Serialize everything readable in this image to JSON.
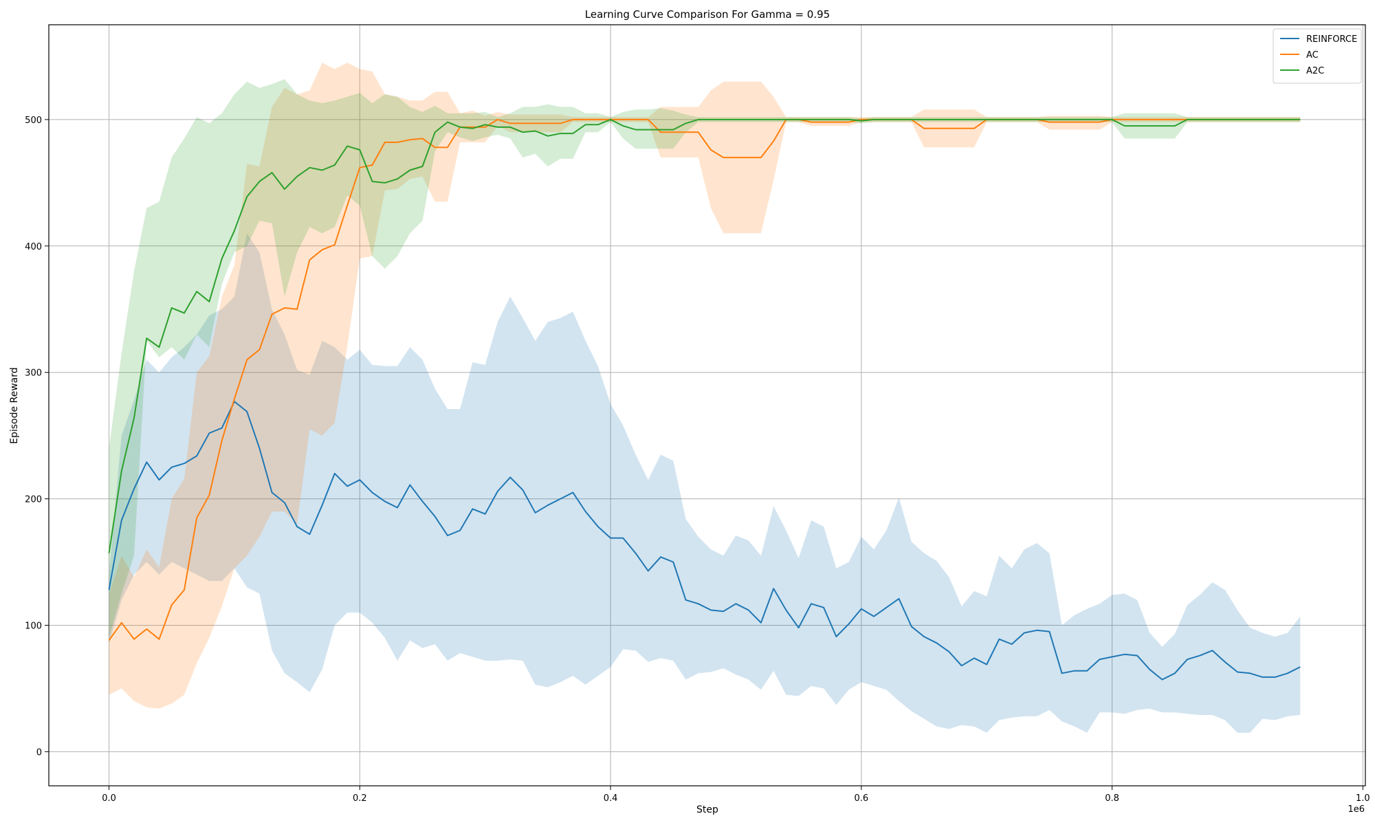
{
  "chart_data": {
    "type": "line",
    "title": "Learning Curve Comparison For Gamma = 0.95",
    "xlabel": "Step",
    "ylabel": "Episode Reward",
    "x_scale_label": "1e6",
    "xlim": [
      -0.048,
      1.002
    ],
    "ylim": [
      -27,
      575
    ],
    "x_ticks": [
      0.0,
      0.2,
      0.4,
      0.6,
      0.8,
      1.0
    ],
    "x_tick_labels": [
      "0.0",
      "0.2",
      "0.4",
      "0.6",
      "0.8",
      "1.0"
    ],
    "y_ticks": [
      0,
      100,
      200,
      300,
      400,
      500
    ],
    "y_tick_labels": [
      "0",
      "100",
      "200",
      "300",
      "400",
      "500"
    ],
    "grid": true,
    "legend_position": "top-right",
    "x_start": 0.0,
    "x_step": 0.01,
    "series": [
      {
        "name": "REINFORCE",
        "color": "#1f77b4",
        "band_color": "#1f77b4",
        "band_opacity": 0.2,
        "mean": [
          128,
          183,
          208,
          229,
          215,
          225,
          228,
          234,
          252,
          256,
          277,
          269,
          240,
          205,
          197,
          178,
          172,
          195,
          220,
          210,
          215,
          205,
          198,
          193,
          211,
          198,
          186,
          171,
          175,
          192,
          188,
          206,
          217,
          207,
          189,
          195,
          200,
          205,
          190,
          178,
          169,
          169,
          157,
          143,
          154,
          150,
          120,
          117,
          112,
          111,
          117,
          112,
          102,
          129,
          112,
          98,
          117,
          114,
          91,
          101,
          113,
          107,
          114,
          121,
          99,
          91,
          86,
          79,
          68,
          74,
          69,
          89,
          85,
          94,
          96,
          95,
          62,
          64,
          64,
          73,
          75,
          77,
          76,
          65,
          57,
          62,
          73,
          76,
          80,
          71,
          63,
          62,
          59,
          59,
          62,
          67
        ],
        "upper": [
          140,
          250,
          278,
          310,
          300,
          312,
          320,
          330,
          345,
          350,
          360,
          410,
          395,
          350,
          330,
          302,
          298,
          325,
          320,
          310,
          318,
          306,
          305,
          305,
          320,
          310,
          287,
          271,
          271,
          308,
          306,
          340,
          360,
          343,
          325,
          340,
          343,
          348,
          325,
          305,
          275,
          258,
          235,
          215,
          235,
          230,
          184,
          170,
          160,
          155,
          171,
          167,
          155,
          194,
          175,
          153,
          183,
          178,
          145,
          150,
          170,
          160,
          175,
          201,
          166,
          157,
          151,
          138,
          115,
          127,
          123,
          155,
          145,
          160,
          165,
          157,
          100,
          108,
          113,
          117,
          124,
          125,
          120,
          94,
          83,
          93,
          116,
          124,
          134,
          128,
          112,
          98,
          94,
          91,
          94,
          107
        ],
        "lower": [
          85,
          120,
          140,
          150,
          140,
          150,
          145,
          140,
          135,
          135,
          145,
          130,
          125,
          80,
          62,
          55,
          47,
          65,
          100,
          110,
          110,
          102,
          90,
          72,
          88,
          82,
          85,
          72,
          78,
          75,
          72,
          72,
          73,
          72,
          53,
          51,
          55,
          60,
          53,
          60,
          67,
          81,
          80,
          71,
          74,
          72,
          57,
          62,
          63,
          66,
          61,
          57,
          49,
          64,
          45,
          44,
          52,
          50,
          37,
          49,
          55,
          52,
          49,
          40,
          32,
          26,
          20,
          18,
          21,
          20,
          15,
          25,
          27,
          28,
          28,
          33,
          24,
          20,
          15,
          31,
          31,
          30,
          33,
          34,
          31,
          31,
          30,
          29,
          29,
          25,
          15,
          15,
          26,
          25,
          28,
          29
        ]
      },
      {
        "name": "AC",
        "color": "#ff7f0e",
        "band_color": "#ff7f0e",
        "band_opacity": 0.2,
        "mean": [
          88,
          102,
          89,
          97,
          89,
          116,
          128,
          185,
          203,
          246,
          279,
          310,
          318,
          346,
          351,
          350,
          389,
          397,
          401,
          432,
          462,
          464,
          482,
          482,
          484,
          485,
          478,
          478,
          494,
          494,
          494,
          500,
          497,
          497,
          497,
          497,
          497,
          500,
          500,
          500,
          500,
          500,
          500,
          500,
          490,
          490,
          490,
          490,
          476,
          470,
          470,
          470,
          470,
          483,
          500,
          500,
          498,
          498,
          498,
          498,
          500,
          500,
          500,
          500,
          500,
          493,
          493,
          493,
          493,
          493,
          500,
          500,
          500,
          500,
          500,
          498,
          498,
          498,
          498,
          498,
          500,
          500,
          500,
          500,
          500,
          500,
          500,
          500,
          500,
          500,
          500,
          500,
          500,
          500,
          500,
          500
        ],
        "upper": [
          125,
          155,
          138,
          160,
          146,
          200,
          216,
          300,
          313,
          360,
          385,
          465,
          463,
          510,
          525,
          520,
          523,
          545,
          540,
          545,
          540,
          538,
          520,
          518,
          515,
          515,
          522,
          522,
          505,
          507,
          503,
          506,
          504,
          504,
          504,
          504,
          504,
          502,
          502,
          502,
          502,
          502,
          502,
          502,
          510,
          510,
          510,
          510,
          523,
          530,
          530,
          530,
          530,
          518,
          502,
          502,
          502,
          502,
          502,
          502,
          502,
          502,
          502,
          502,
          502,
          508,
          508,
          508,
          508,
          508,
          502,
          502,
          502,
          502,
          502,
          503,
          503,
          503,
          503,
          503,
          502,
          502,
          502,
          502,
          502,
          502,
          502,
          502,
          502,
          502,
          502,
          502,
          502,
          502,
          502,
          502
        ],
        "lower": [
          45,
          50,
          40,
          35,
          34,
          38,
          45,
          70,
          90,
          115,
          145,
          155,
          170,
          190,
          190,
          180,
          255,
          250,
          260,
          320,
          390,
          392,
          444,
          445,
          453,
          455,
          435,
          435,
          482,
          482,
          482,
          495,
          490,
          490,
          490,
          490,
          490,
          498,
          498,
          498,
          498,
          498,
          498,
          498,
          470,
          470,
          470,
          470,
          430,
          410,
          410,
          410,
          410,
          452,
          498,
          498,
          495,
          495,
          495,
          495,
          498,
          498,
          498,
          498,
          498,
          478,
          478,
          478,
          478,
          478,
          498,
          498,
          498,
          498,
          498,
          492,
          492,
          492,
          492,
          492,
          498,
          498,
          498,
          498,
          498,
          498,
          498,
          498,
          498,
          498,
          498,
          498,
          498,
          498,
          498,
          498
        ]
      },
      {
        "name": "A2C",
        "color": "#2ca02c",
        "band_color": "#2ca02c",
        "band_opacity": 0.2,
        "mean": [
          157,
          222,
          264,
          327,
          320,
          351,
          347,
          364,
          356,
          390,
          412,
          439,
          451,
          458,
          445,
          455,
          462,
          460,
          464,
          479,
          476,
          451,
          450,
          453,
          460,
          463,
          490,
          498,
          494,
          493,
          496,
          494,
          494,
          490,
          491,
          487,
          489,
          489,
          496,
          496,
          500,
          495,
          492,
          492,
          492,
          492,
          497,
          500,
          500,
          500,
          500,
          500,
          500,
          500,
          500,
          500,
          500,
          500,
          500,
          500,
          499,
          500,
          500,
          500,
          500,
          500,
          500,
          500,
          500,
          500,
          500,
          500,
          500,
          500,
          500,
          500,
          500,
          500,
          500,
          500,
          500,
          495,
          495,
          495,
          495,
          495,
          500,
          500,
          500,
          500,
          500,
          500,
          500,
          500,
          500,
          500
        ],
        "upper": [
          240,
          315,
          380,
          430,
          435,
          470,
          485,
          502,
          497,
          505,
          520,
          530,
          525,
          528,
          532,
          520,
          515,
          513,
          515,
          518,
          521,
          513,
          520,
          518,
          510,
          506,
          511,
          505,
          505,
          505,
          506,
          502,
          505,
          510,
          510,
          512,
          510,
          510,
          505,
          505,
          502,
          506,
          508,
          508,
          509,
          507,
          504,
          502,
          502,
          502,
          502,
          502,
          502,
          502,
          502,
          502,
          502,
          502,
          502,
          502,
          501,
          502,
          502,
          502,
          502,
          502,
          502,
          502,
          502,
          502,
          502,
          502,
          502,
          502,
          502,
          502,
          502,
          502,
          502,
          502,
          502,
          505,
          505,
          505,
          505,
          505,
          502,
          502,
          502,
          502,
          502,
          502,
          502,
          502,
          502,
          502
        ],
        "lower": [
          90,
          125,
          155,
          325,
          312,
          320,
          310,
          330,
          320,
          370,
          395,
          400,
          420,
          418,
          360,
          395,
          415,
          410,
          415,
          440,
          432,
          392,
          382,
          392,
          410,
          420,
          475,
          490,
          486,
          483,
          486,
          488,
          485,
          470,
          473,
          463,
          469,
          469,
          490,
          490,
          498,
          485,
          477,
          477,
          477,
          477,
          490,
          498,
          498,
          498,
          498,
          498,
          498,
          498,
          498,
          498,
          498,
          498,
          498,
          498,
          497,
          498,
          498,
          498,
          498,
          498,
          498,
          498,
          498,
          498,
          498,
          498,
          498,
          498,
          498,
          498,
          498,
          498,
          498,
          498,
          498,
          485,
          485,
          485,
          485,
          485,
          498,
          498,
          498,
          498,
          498,
          498,
          498,
          498,
          498,
          498
        ]
      }
    ]
  }
}
